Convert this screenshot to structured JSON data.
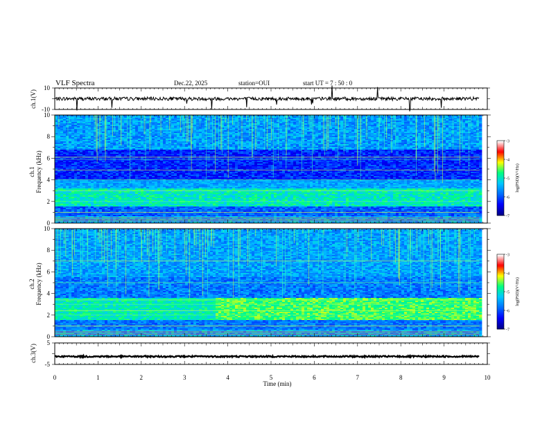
{
  "header": {
    "title": "VLF Spectra",
    "date": "Dec.22, 2025",
    "station": "station=OUI",
    "start_ut": "start  UT =   7 : 50 : 0"
  },
  "chart_data": [
    {
      "type": "line",
      "name": "ch1-waveform",
      "ylabel": "ch.1(V)",
      "ylim": [
        -10,
        10
      ],
      "ytick_labels": [
        "10",
        "-10"
      ],
      "xlim": [
        0,
        10
      ],
      "baseline": 0,
      "data_end_min": 9.82
    },
    {
      "type": "heatmap",
      "name": "ch1-spectrogram",
      "ylabel_channel": "ch.1",
      "ylabel": "Frequency (kHz)",
      "ylim": [
        0,
        10
      ],
      "ytick_labels": [
        "0",
        "2",
        "4",
        "6",
        "8",
        "10"
      ],
      "xlim": [
        0,
        10
      ],
      "colorbar": {
        "label": "log(PSD)(V²/Hz)",
        "range": [
          -7,
          -3
        ],
        "tick_labels": [
          "-3",
          "-4",
          "-5",
          "-6",
          "-7"
        ],
        "colormap": [
          "#00008b",
          "#0000ff",
          "#0070ff",
          "#00c8ff",
          "#00ff80",
          "#ffff00",
          "#ff0000",
          "#ffffff"
        ]
      }
    },
    {
      "type": "heatmap",
      "name": "ch2-spectrogram",
      "ylabel_channel": "ch.2",
      "ylabel": "Frequency (kHz)",
      "ylim": [
        0,
        10
      ],
      "ytick_labels": [
        "0",
        "2",
        "4",
        "6",
        "8",
        "10"
      ],
      "xlim": [
        0,
        10
      ],
      "colorbar": {
        "label": "log(PSD)(V²/Hz)",
        "range": [
          -7,
          -3
        ],
        "tick_labels": [
          "-3",
          "-4",
          "-5",
          "-6",
          "-7"
        ],
        "colormap": [
          "#00008b",
          "#0000ff",
          "#0070ff",
          "#00c8ff",
          "#00ff80",
          "#ffff00",
          "#ff0000",
          "#ffffff"
        ]
      }
    },
    {
      "type": "line",
      "name": "ch3-waveform",
      "ylabel": "ch.3(V)",
      "ylim": [
        -5,
        5
      ],
      "ytick_labels": [
        "5",
        "-5"
      ],
      "xlim": [
        0,
        10
      ],
      "baseline": -1.3,
      "data_end_min": 9.82
    }
  ],
  "x_axis": {
    "label": "Time (min)",
    "tick_labels": [
      "0",
      "1",
      "2",
      "3",
      "4",
      "5",
      "6",
      "7",
      "8",
      "9",
      "10"
    ]
  }
}
